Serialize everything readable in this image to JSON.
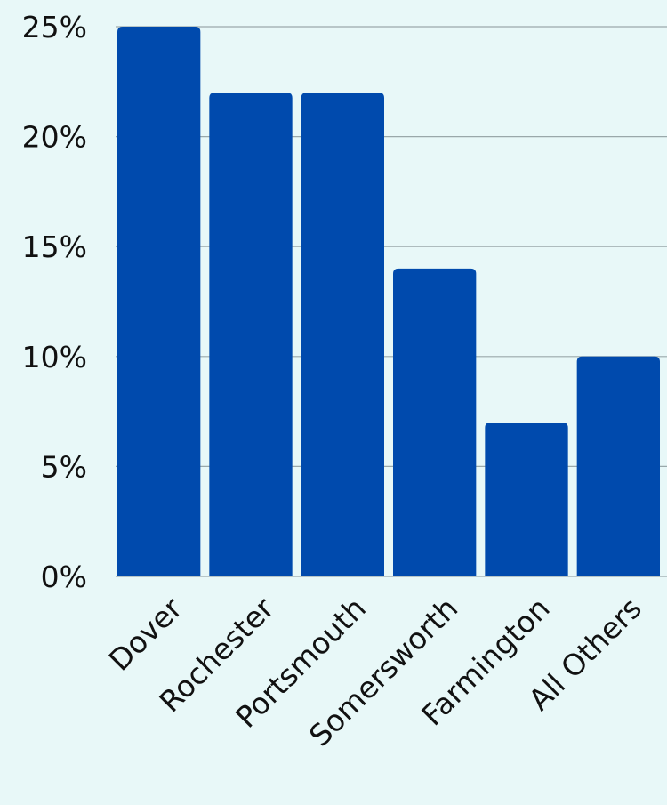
{
  "chart_data": {
    "type": "bar",
    "categories": [
      "Dover",
      "Rochester",
      "Portsmouth",
      "Somersworth",
      "Farmington",
      "All Others"
    ],
    "values": [
      25,
      22,
      22,
      14,
      7,
      10
    ],
    "yticks": [
      "0%",
      "5%",
      "10%",
      "15%",
      "20%",
      "25%"
    ],
    "ylim": [
      0,
      25
    ],
    "ystep": 5,
    "grid": true,
    "bar_color": "#004aad",
    "background": "#e8f8f8"
  }
}
